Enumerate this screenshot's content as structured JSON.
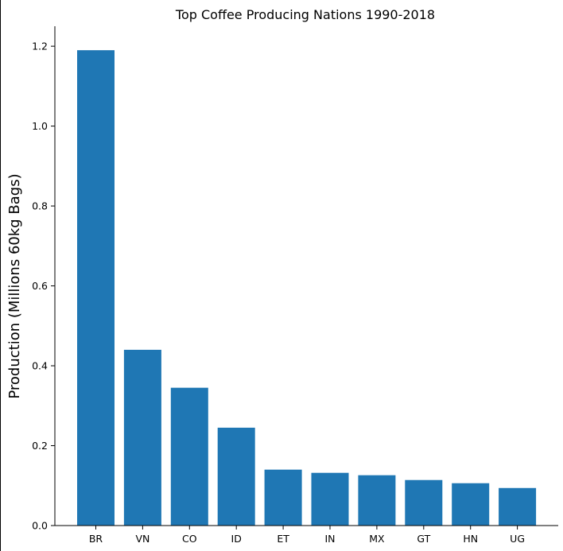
{
  "chart_data": {
    "type": "bar",
    "title": "Top Coffee Producing Nations 1990-2018",
    "xlabel": "",
    "ylabel": "Production (Millions 60kg Bags)",
    "categories": [
      "BR",
      "VN",
      "CO",
      "ID",
      "ET",
      "IN",
      "MX",
      "GT",
      "HN",
      "UG"
    ],
    "values": [
      1.19,
      0.44,
      0.345,
      0.245,
      0.14,
      0.132,
      0.126,
      0.114,
      0.106,
      0.094
    ],
    "ylim": [
      0,
      1.25
    ],
    "yticks": [
      "0.0",
      "0.2",
      "0.4",
      "0.6",
      "0.8",
      "1.0",
      "1.2"
    ],
    "bar_color": "#1f77b4",
    "grid": false,
    "legend": "none"
  }
}
